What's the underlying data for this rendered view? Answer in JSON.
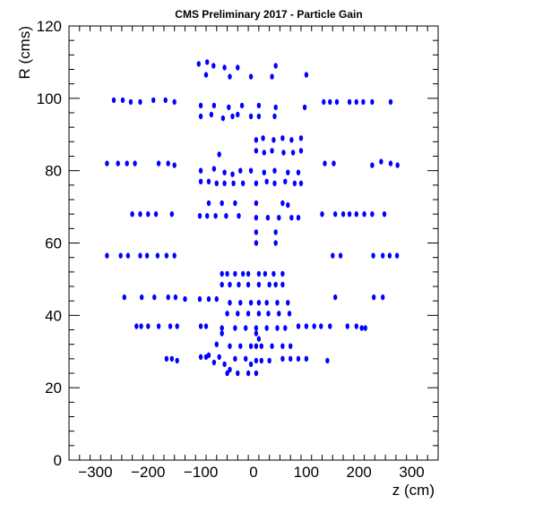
{
  "chart_data": {
    "type": "scatter",
    "title": "CMS Preliminary 2017  -  Particle Gain",
    "xlabel": "z (cm)",
    "ylabel": "R (cms)",
    "xlim": [
      -350,
      350
    ],
    "ylim": [
      0,
      120
    ],
    "xticks": [
      -300,
      -200,
      -100,
      0,
      100,
      200,
      300
    ],
    "xtick_labels": [
      "−300",
      "−200",
      "−100",
      "0",
      "100",
      "200",
      "300"
    ],
    "yticks": [
      0,
      20,
      40,
      60,
      80,
      100,
      120
    ],
    "ytick_labels": [
      "0",
      "20",
      "40",
      "60",
      "80",
      "100",
      "120"
    ],
    "grid": false,
    "marker_color": "#0000ff",
    "points": [
      [
        -104,
        109.5
      ],
      [
        -88,
        110
      ],
      [
        -76,
        109
      ],
      [
        -55,
        108.5
      ],
      [
        -30,
        108.5
      ],
      [
        42,
        109
      ],
      [
        -90,
        106.5
      ],
      [
        -45,
        106
      ],
      [
        -5,
        106
      ],
      [
        35,
        106
      ],
      [
        100,
        106.5
      ],
      [
        -265,
        99.5
      ],
      [
        -248,
        99.5
      ],
      [
        -233,
        99
      ],
      [
        -215,
        99
      ],
      [
        -190,
        99.5
      ],
      [
        -167,
        99.5
      ],
      [
        -150,
        99
      ],
      [
        -100,
        98
      ],
      [
        -75,
        98
      ],
      [
        -47,
        97.5
      ],
      [
        -22,
        98
      ],
      [
        10,
        98
      ],
      [
        42,
        97.5
      ],
      [
        97,
        97.5
      ],
      [
        133,
        99
      ],
      [
        145,
        99
      ],
      [
        158,
        99
      ],
      [
        182,
        99
      ],
      [
        195,
        99
      ],
      [
        208,
        99
      ],
      [
        225,
        99
      ],
      [
        260,
        99
      ],
      [
        -100,
        95
      ],
      [
        -80,
        95.5
      ],
      [
        -58,
        94.5
      ],
      [
        -40,
        95
      ],
      [
        -30,
        95.5
      ],
      [
        -5,
        95
      ],
      [
        10,
        95
      ],
      [
        40,
        95
      ],
      [
        5,
        88.5
      ],
      [
        18,
        89
      ],
      [
        38,
        88.5
      ],
      [
        55,
        89
      ],
      [
        72,
        88.5
      ],
      [
        90,
        89
      ],
      [
        5,
        85.5
      ],
      [
        20,
        85
      ],
      [
        35,
        85.5
      ],
      [
        57,
        85
      ],
      [
        75,
        85
      ],
      [
        90,
        85.5
      ],
      [
        -65,
        84.5
      ],
      [
        -278,
        82
      ],
      [
        -257,
        82
      ],
      [
        -240,
        82
      ],
      [
        -225,
        82
      ],
      [
        -180,
        82
      ],
      [
        -162,
        82
      ],
      [
        -150,
        81.5
      ],
      [
        -100,
        80
      ],
      [
        -75,
        80.5
      ],
      [
        -55,
        79.5
      ],
      [
        -40,
        79
      ],
      [
        -25,
        80
      ],
      [
        -5,
        80
      ],
      [
        20,
        79.5
      ],
      [
        40,
        80
      ],
      [
        65,
        79.5
      ],
      [
        85,
        79.5
      ],
      [
        135,
        82
      ],
      [
        152,
        82
      ],
      [
        225,
        81.5
      ],
      [
        242,
        82.5
      ],
      [
        260,
        82
      ],
      [
        273,
        81.5
      ],
      [
        -100,
        77
      ],
      [
        -85,
        77
      ],
      [
        -70,
        76.5
      ],
      [
        -55,
        76.5
      ],
      [
        -38,
        76.5
      ],
      [
        -20,
        76.5
      ],
      [
        5,
        76.5
      ],
      [
        25,
        77
      ],
      [
        40,
        76.5
      ],
      [
        60,
        77
      ],
      [
        78,
        76.5
      ],
      [
        90,
        76.5
      ],
      [
        -85,
        71
      ],
      [
        -60,
        71
      ],
      [
        -35,
        71
      ],
      [
        5,
        71
      ],
      [
        55,
        71
      ],
      [
        65,
        70.5
      ],
      [
        -230,
        68
      ],
      [
        -215,
        68
      ],
      [
        -200,
        68
      ],
      [
        -185,
        68
      ],
      [
        -155,
        68
      ],
      [
        -102,
        67.5
      ],
      [
        -88,
        67.5
      ],
      [
        -72,
        67.5
      ],
      [
        -52,
        67.5
      ],
      [
        -28,
        67.5
      ],
      [
        5,
        67
      ],
      [
        27,
        67
      ],
      [
        48,
        67
      ],
      [
        72,
        67
      ],
      [
        85,
        67
      ],
      [
        130,
        68
      ],
      [
        155,
        68
      ],
      [
        170,
        68
      ],
      [
        182,
        68
      ],
      [
        195,
        68
      ],
      [
        210,
        68
      ],
      [
        225,
        68
      ],
      [
        248,
        68
      ],
      [
        5,
        63
      ],
      [
        42,
        63
      ],
      [
        5,
        60
      ],
      [
        42,
        60
      ],
      [
        -278,
        56.5
      ],
      [
        -252,
        56.5
      ],
      [
        -238,
        56.5
      ],
      [
        -215,
        56.5
      ],
      [
        -202,
        56.5
      ],
      [
        -182,
        56.5
      ],
      [
        -165,
        56.5
      ],
      [
        -150,
        56.5
      ],
      [
        150,
        56.5
      ],
      [
        165,
        56.5
      ],
      [
        227,
        56.5
      ],
      [
        245,
        56.5
      ],
      [
        258,
        56.5
      ],
      [
        272,
        56.5
      ],
      [
        -60,
        51.5
      ],
      [
        -50,
        51.5
      ],
      [
        -35,
        51.5
      ],
      [
        -20,
        51.5
      ],
      [
        -10,
        51.5
      ],
      [
        10,
        51.5
      ],
      [
        22,
        51.5
      ],
      [
        38,
        51.5
      ],
      [
        55,
        51.5
      ],
      [
        -60,
        48.5
      ],
      [
        -45,
        48.5
      ],
      [
        -28,
        48.5
      ],
      [
        -10,
        48.5
      ],
      [
        10,
        48.5
      ],
      [
        30,
        48.5
      ],
      [
        42,
        48.5
      ],
      [
        55,
        48.5
      ],
      [
        -245,
        45
      ],
      [
        -212,
        45
      ],
      [
        -188,
        45
      ],
      [
        -162,
        45
      ],
      [
        -148,
        45
      ],
      [
        -130,
        44.5
      ],
      [
        -102,
        44.5
      ],
      [
        -85,
        44.5
      ],
      [
        -70,
        44.5
      ],
      [
        155,
        45
      ],
      [
        228,
        45
      ],
      [
        245,
        45
      ],
      [
        -45,
        43.5
      ],
      [
        -25,
        43.5
      ],
      [
        -5,
        43.5
      ],
      [
        10,
        43.5
      ],
      [
        25,
        43.5
      ],
      [
        45,
        43.5
      ],
      [
        65,
        43.5
      ],
      [
        -50,
        40.5
      ],
      [
        -30,
        40.5
      ],
      [
        -10,
        40.5
      ],
      [
        10,
        40.5
      ],
      [
        28,
        40.5
      ],
      [
        48,
        40.5
      ],
      [
        68,
        40.5
      ],
      [
        -222,
        37
      ],
      [
        -213,
        37
      ],
      [
        -200,
        37
      ],
      [
        -180,
        37
      ],
      [
        -158,
        37
      ],
      [
        -145,
        37
      ],
      [
        -100,
        37
      ],
      [
        -90,
        37
      ],
      [
        -60,
        36.5
      ],
      [
        -35,
        36.5
      ],
      [
        -15,
        36.5
      ],
      [
        5,
        36.5
      ],
      [
        25,
        36.5
      ],
      [
        45,
        36.5
      ],
      [
        60,
        36.5
      ],
      [
        85,
        37
      ],
      [
        100,
        37
      ],
      [
        115,
        37
      ],
      [
        128,
        37
      ],
      [
        145,
        37
      ],
      [
        178,
        37
      ],
      [
        195,
        37
      ],
      [
        205,
        36.5
      ],
      [
        212,
        36.5
      ],
      [
        -60,
        35
      ],
      [
        5,
        35
      ],
      [
        10,
        33.5
      ],
      [
        -70,
        32
      ],
      [
        -45,
        31.5
      ],
      [
        -25,
        31.5
      ],
      [
        -5,
        31.5
      ],
      [
        5,
        31.5
      ],
      [
        15,
        31.5
      ],
      [
        35,
        31.5
      ],
      [
        55,
        31.5
      ],
      [
        70,
        31.5
      ],
      [
        -165,
        28
      ],
      [
        -155,
        28
      ],
      [
        -145,
        27.5
      ],
      [
        -100,
        28.5
      ],
      [
        -90,
        28.5
      ],
      [
        -85,
        29
      ],
      [
        -65,
        28.5
      ],
      [
        -35,
        28
      ],
      [
        -15,
        28
      ],
      [
        5,
        27.5
      ],
      [
        15,
        27.5
      ],
      [
        30,
        27.5
      ],
      [
        55,
        28
      ],
      [
        70,
        28
      ],
      [
        85,
        28
      ],
      [
        100,
        28
      ],
      [
        140,
        27.5
      ],
      [
        -75,
        27
      ],
      [
        -55,
        26.5
      ],
      [
        -5,
        26.5
      ],
      [
        -50,
        24
      ],
      [
        -30,
        24
      ],
      [
        -10,
        24
      ],
      [
        5,
        24
      ],
      [
        -45,
        25
      ]
    ]
  }
}
